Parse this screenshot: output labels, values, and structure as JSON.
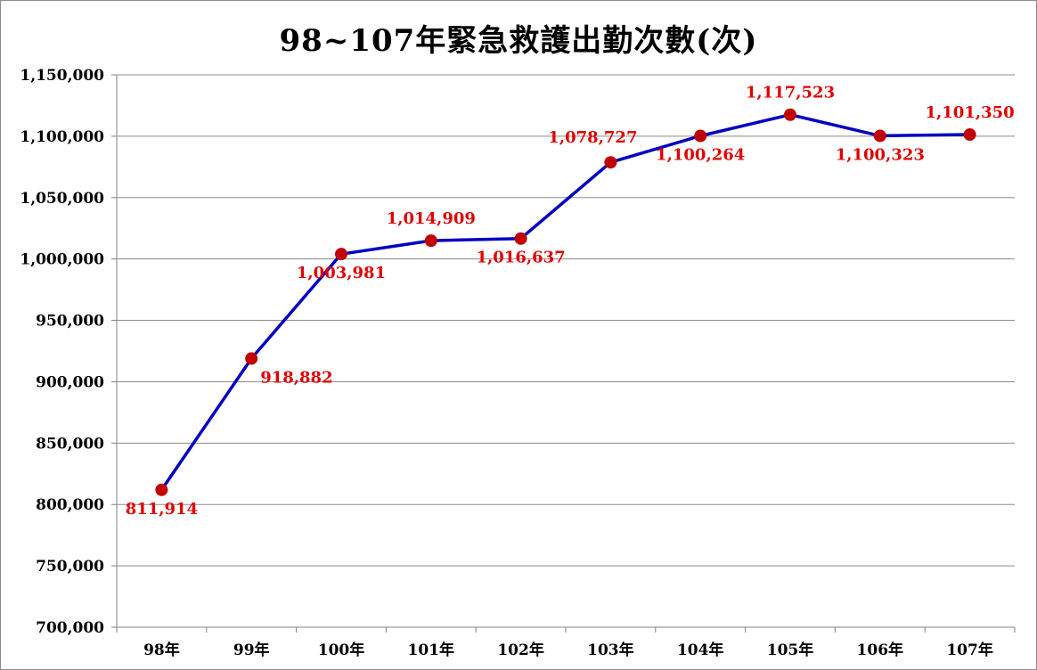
{
  "chart_data": {
    "type": "line",
    "title": "98~107年緊急救護出勤次數(次)",
    "categories": [
      "98年",
      "99年",
      "100年",
      "101年",
      "102年",
      "103年",
      "104年",
      "105年",
      "106年",
      "107年"
    ],
    "series": [
      {
        "values": [
          811914,
          918882,
          1003981,
          1014909,
          1016637,
          1078727,
          1100264,
          1117523,
          1100323,
          1101350
        ],
        "data_labels": [
          "811,914",
          "918,882",
          "1,003,981",
          "1,014,909",
          "1,016,637",
          "1,078,727",
          "1,100,264",
          "1,117,523",
          "1,100,323",
          "1,101,350"
        ],
        "label_positions": [
          "below",
          "below-right",
          "below",
          "above",
          "below",
          "above-left",
          "below",
          "above",
          "below",
          "above"
        ],
        "line_color": "#0000c0",
        "marker_color": "#c00000"
      }
    ],
    "ylim": [
      700000,
      1150000
    ],
    "y_ticks": [
      700000,
      750000,
      800000,
      850000,
      900000,
      950000,
      1000000,
      1050000,
      1100000,
      1150000
    ],
    "y_tick_labels": [
      "700,000",
      "750,000",
      "800,000",
      "850,000",
      "900,000",
      "950,000",
      "1,000,000",
      "1,050,000",
      "1,100,000",
      "1,150,000"
    ],
    "grid": true,
    "legend": "none",
    "xlabel": "",
    "ylabel": "",
    "colors": {
      "label": "#e00000",
      "grid": "#8c8c8c",
      "axis": "#808080"
    }
  }
}
